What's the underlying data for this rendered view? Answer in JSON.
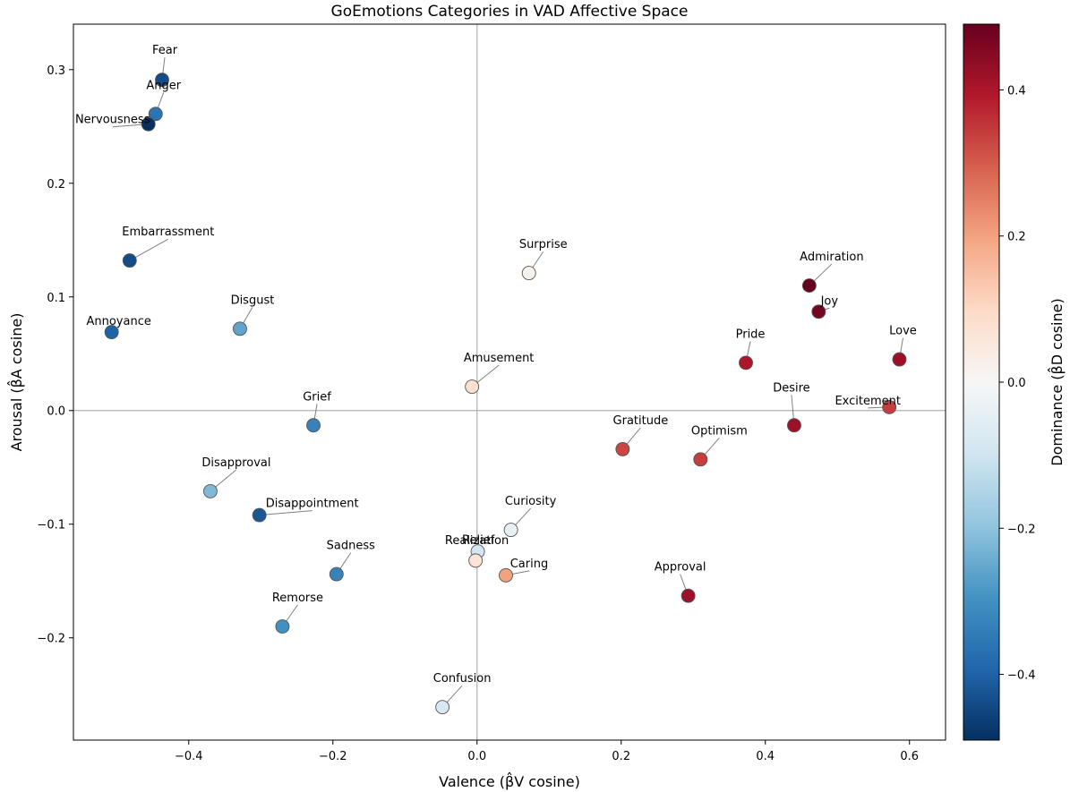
{
  "chart_data": {
    "type": "scatter",
    "title": "GoEmotions Categories in VAD Affective Space",
    "xlabel": "Valence (β̂V cosine)",
    "ylabel": "Arousal (β̂A cosine)",
    "colorbar_label": "Dominance (β̂D cosine)",
    "xlim": [
      -0.56,
      0.65
    ],
    "ylim": [
      -0.29,
      0.34
    ],
    "clim": [
      -0.49,
      0.49
    ],
    "x_ticks": [
      -0.4,
      -0.2,
      0.0,
      0.2,
      0.4,
      0.6
    ],
    "x_tick_labels": [
      "−0.4",
      "−0.2",
      "0.0",
      "0.2",
      "0.4",
      "0.6"
    ],
    "y_ticks": [
      -0.2,
      -0.1,
      0.0,
      0.1,
      0.2,
      0.3
    ],
    "y_tick_labels": [
      "−0.2",
      "−0.1",
      "0.0",
      "0.1",
      "0.2",
      "0.3"
    ],
    "c_ticks": [
      -0.4,
      -0.2,
      0.0,
      0.2,
      0.4
    ],
    "c_tick_labels": [
      "−0.4",
      "−0.2",
      "0.0",
      "0.2",
      "0.4"
    ],
    "colormap": "RdBu_r",
    "reference_lines": {
      "x": 0,
      "y": 0
    },
    "grid": false,
    "points": [
      {
        "label": "Fear",
        "x": -0.437,
        "y": 0.291,
        "d": -0.44
      },
      {
        "label": "Anger",
        "x": -0.446,
        "y": 0.261,
        "d": -0.36
      },
      {
        "label": "Nervousness",
        "x": -0.456,
        "y": 0.252,
        "d": -0.49
      },
      {
        "label": "Embarrassment",
        "x": -0.482,
        "y": 0.132,
        "d": -0.44
      },
      {
        "label": "Annoyance",
        "x": -0.507,
        "y": 0.069,
        "d": -0.4
      },
      {
        "label": "Disgust",
        "x": -0.329,
        "y": 0.072,
        "d": -0.26
      },
      {
        "label": "Grief",
        "x": -0.227,
        "y": -0.013,
        "d": -0.33
      },
      {
        "label": "Disapproval",
        "x": -0.37,
        "y": -0.071,
        "d": -0.22
      },
      {
        "label": "Disappointment",
        "x": -0.302,
        "y": -0.092,
        "d": -0.42
      },
      {
        "label": "Sadness",
        "x": -0.195,
        "y": -0.144,
        "d": -0.33
      },
      {
        "label": "Remorse",
        "x": -0.27,
        "y": -0.19,
        "d": -0.3
      },
      {
        "label": "Surprise",
        "x": 0.072,
        "y": 0.121,
        "d": 0.02
      },
      {
        "label": "Amusement",
        "x": -0.007,
        "y": 0.021,
        "d": 0.08
      },
      {
        "label": "Curiosity",
        "x": 0.047,
        "y": -0.105,
        "d": -0.04
      },
      {
        "label": "Realization",
        "x": 0.001,
        "y": -0.124,
        "d": -0.09
      },
      {
        "label": "Relief",
        "x": -0.002,
        "y": -0.132,
        "d": 0.07
      },
      {
        "label": "Caring",
        "x": 0.04,
        "y": -0.145,
        "d": 0.2
      },
      {
        "label": "Confusion",
        "x": -0.048,
        "y": -0.261,
        "d": -0.08
      },
      {
        "label": "Admiration",
        "x": 0.461,
        "y": 0.11,
        "d": 0.49
      },
      {
        "label": "Joy",
        "x": 0.474,
        "y": 0.087,
        "d": 0.47
      },
      {
        "label": "Pride",
        "x": 0.373,
        "y": 0.042,
        "d": 0.4
      },
      {
        "label": "Love",
        "x": 0.586,
        "y": 0.045,
        "d": 0.42
      },
      {
        "label": "Desire",
        "x": 0.44,
        "y": -0.013,
        "d": 0.42
      },
      {
        "label": "Excitement",
        "x": 0.572,
        "y": 0.003,
        "d": 0.34
      },
      {
        "label": "Gratitude",
        "x": 0.202,
        "y": -0.034,
        "d": 0.33
      },
      {
        "label": "Optimism",
        "x": 0.31,
        "y": -0.043,
        "d": 0.34
      },
      {
        "label": "Approval",
        "x": 0.293,
        "y": -0.163,
        "d": 0.42
      }
    ]
  }
}
